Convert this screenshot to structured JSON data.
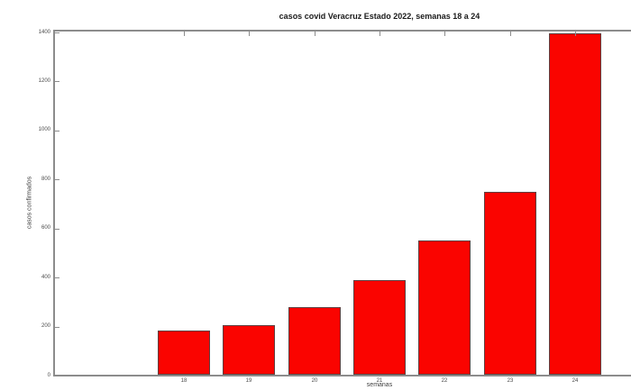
{
  "chart_data": {
    "type": "bar",
    "title": "casos covid Veracruz Estado 2022, semanas 18 a 24",
    "xlabel": "semanas",
    "ylabel": "casos confirmados",
    "categories": [
      "18",
      "19",
      "20",
      "21",
      "22",
      "23",
      "24"
    ],
    "values": [
      182,
      204,
      280,
      390,
      550,
      748,
      1395
    ],
    "ylim": [
      0,
      1400
    ],
    "yticks": [
      0,
      200,
      400,
      600,
      800,
      1000,
      1200,
      1400
    ],
    "grid": false,
    "legend": "none",
    "colors": {
      "bar_fill": "#fa0400",
      "bar_edge": "#5e4040",
      "axis": "#8c8c8c",
      "tick_text": "#4a4a4a",
      "title_text": "#1a1a1a",
      "background": "#ffffff"
    }
  }
}
